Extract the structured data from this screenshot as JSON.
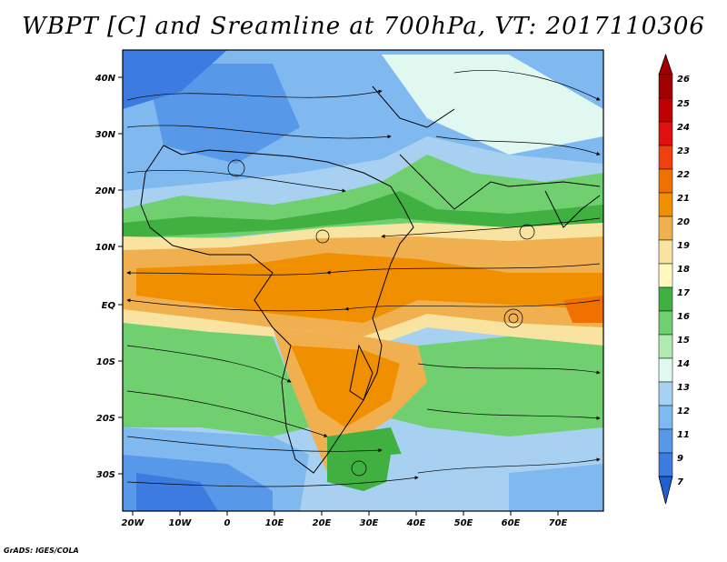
{
  "title": "WBPT [C] and Sreamline at 700hPa, VT: 2017110306",
  "credit": "GrADS: IGES/COLA",
  "map": {
    "lat_labels": [
      "40N",
      "30N",
      "20N",
      "10N",
      "EQ",
      "10S",
      "20S",
      "30S"
    ],
    "lon_labels": [
      "20W",
      "10W",
      "0",
      "10E",
      "20E",
      "30E",
      "40E",
      "50E",
      "60E",
      "70E"
    ],
    "extent": {
      "lon": [
        -20,
        80
      ],
      "lat": [
        -36,
        45
      ]
    }
  },
  "colorbar": {
    "labels": [
      "26",
      "25",
      "24",
      "23",
      "22",
      "21",
      "20",
      "19",
      "18",
      "17",
      "16",
      "15",
      "14",
      "13",
      "12",
      "11",
      "9",
      "7"
    ],
    "colors": [
      "#a00000",
      "#c00000",
      "#e01010",
      "#f04010",
      "#f07000",
      "#f09000",
      "#f0b050",
      "#f8e4a0",
      "#fff8c0",
      "#40b040",
      "#70d070",
      "#b0eab0",
      "#e0f8f0",
      "#a8d0f0",
      "#80b8f0",
      "#5898e8",
      "#3c7ce0",
      "#2060d0"
    ]
  }
}
